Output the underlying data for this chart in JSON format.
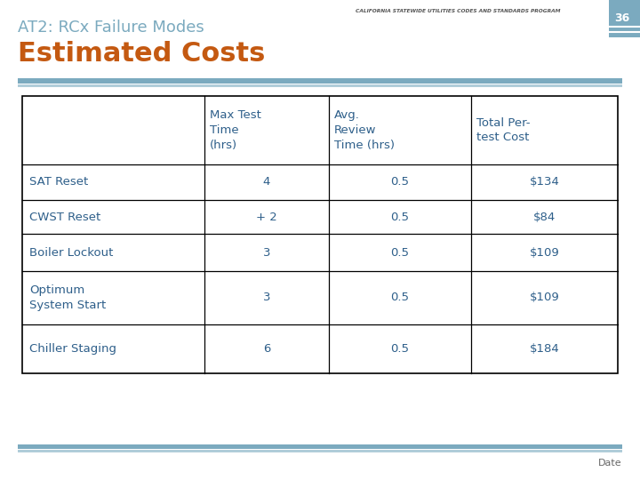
{
  "title_line1": "AT2: RCx Failure Modes",
  "title_line2": "Estimated Costs",
  "header_right": "CALIFORNIA STATEWIDE UTILITIES CODES AND STANDARDS PROGRAM",
  "page_number": "36",
  "col_headers": [
    "",
    "Max Test\nTime\n(hrs)",
    "Avg.\nReview\nTime (hrs)",
    "Total Per-\ntest Cost"
  ],
  "rows": [
    [
      "SAT Reset",
      "4",
      "0.5",
      "$134"
    ],
    [
      "CWST Reset",
      "+ 2",
      "0.5",
      "$84"
    ],
    [
      "Boiler Lockout",
      "3",
      "0.5",
      "$109"
    ],
    [
      "Optimum\nSystem Start",
      "3",
      "0.5",
      "$109"
    ],
    [
      "Chiller Staging",
      "6",
      "0.5",
      "$184"
    ]
  ],
  "blue_bar_color": "#7baabf",
  "blue_bar_color2": "#5b8fa8",
  "orange_color": "#c45911",
  "title_color": "#7baabf",
  "table_text_color": "#2e5f8a",
  "background_color": "#ffffff",
  "date_text": "Date",
  "page_box_color": "#7baabf",
  "header_top_color": "#999999",
  "thick_bar_color": "#7baabf",
  "thin_bar_color": "#b0cdd9"
}
